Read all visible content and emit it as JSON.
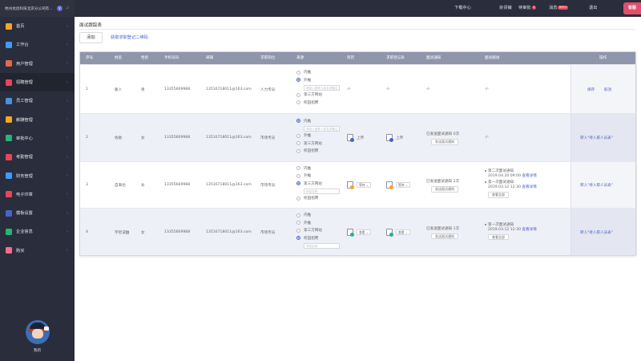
{
  "company": {
    "name": "杭州龙创科技北京分公司有...",
    "badge": "V"
  },
  "sidebar": {
    "items": [
      {
        "label": "首页",
        "icon": "home-icon",
        "color": "#f5a623"
      },
      {
        "label": "工作台",
        "icon": "monitor-icon",
        "color": "#3f9bff"
      },
      {
        "label": "用户管理",
        "icon": "users-icon",
        "color": "#e06a4a"
      },
      {
        "label": "招聘管理",
        "icon": "recruit-icon",
        "color": "#e8455c"
      },
      {
        "label": "员工管理",
        "icon": "employee-icon",
        "color": "#4a90e2"
      },
      {
        "label": "薪酬管理",
        "icon": "salary-icon",
        "color": "#f5a623"
      },
      {
        "label": "审批中心",
        "icon": "approval-icon",
        "color": "#25b57a"
      },
      {
        "label": "考勤管理",
        "icon": "attendance-icon",
        "color": "#e8455c"
      },
      {
        "label": "财务管理",
        "icon": "finance-icon",
        "color": "#3f9bff"
      },
      {
        "label": "电子印章",
        "icon": "seal-icon",
        "color": "#e8455c"
      },
      {
        "label": "模板设置",
        "icon": "template-icon",
        "color": "#4a63c9"
      },
      {
        "label": "企业信息",
        "icon": "company-icon",
        "color": "#25b57a"
      },
      {
        "label": "购买",
        "icon": "purchase-icon",
        "color": "#f56c8a"
      }
    ],
    "me_label": "我的"
  },
  "topbar": {
    "download": "下载中心",
    "shop": "杂货铺",
    "approval": "待审批",
    "approval_badge": "2",
    "messages": "消息",
    "messages_badge": "999+",
    "logout": "退出",
    "service": "客服"
  },
  "page": {
    "title": "面试跟踪表",
    "add_button": "添加",
    "qr_link": "获取求职登记二维码"
  },
  "table": {
    "headers": [
      "序号",
      "姓名",
      "性别",
      "手机号码",
      "邮箱",
      "求职岗位",
      "来源",
      "简历",
      "求职登记表",
      "面试通知",
      "面试跟进",
      "操作"
    ],
    "source_options": [
      "内推",
      "外推",
      "第三方网站",
      "校园招聘"
    ],
    "rows": [
      {
        "no": "1",
        "name": "路人",
        "gender": "男",
        "phone": "13355669988",
        "email": "13516718011@163.com",
        "position": "人力专员",
        "source_selected": "外推",
        "source_input": "请录入推荐人姓名或备注",
        "resume": "-/-",
        "form": "-/-",
        "notice": "-/-",
        "follow": "-/-",
        "actions": [
          "保存",
          "取消"
        ]
      },
      {
        "no": "2",
        "name": "佐助",
        "gender": "女",
        "phone": "13355669988",
        "email": "13516718011@163.com",
        "position": "市场专员",
        "source_selected": "内推",
        "source_input": "请录入推荐人姓名或备注",
        "resume": "上传",
        "form": "上传",
        "notice_text": "已发送面试通知 0次",
        "notice_button": "发送面试通知",
        "follow": "-/-",
        "actions": [
          "转入\"待入职人员表\""
        ]
      },
      {
        "no": "3",
        "name": "自来也",
        "gender": "女",
        "phone": "13355669988",
        "email": "13516718011@163.com",
        "position": "市场专员",
        "source_selected": "第三方网站",
        "source_input": "网站名称",
        "resume": "等待",
        "form": "等待",
        "notice_text": "已发送面试通知 2次",
        "notice_button": "发送面试通知",
        "follow_items": [
          {
            "title": "第二次面试通知",
            "date": "2019.04.20 09:00",
            "link": "查看详情"
          },
          {
            "title": "第一次面试通知",
            "date": "2019.03.12 12:30",
            "link": "查看详情"
          }
        ],
        "follow_button": "查看全部",
        "actions": [
          "转入\"待入职人员表\""
        ]
      },
      {
        "no": "4",
        "name": "宇智波鼬",
        "gender": "女",
        "phone": "13355669988",
        "email": "13516718011@163.com",
        "position": "市场专员",
        "source_selected": "校园招聘",
        "source_input": "学校名称",
        "resume": "查看",
        "form": "查看",
        "notice_text": "已发送面试通知 1次",
        "notice_button": "发送面试通知",
        "follow_items": [
          {
            "title": "第一次面试通知",
            "date": "2019.03.12 12:30",
            "link": "查看详情"
          }
        ],
        "follow_button": "查看全部",
        "actions": [
          "转入\"待入职人员表\""
        ]
      }
    ]
  }
}
